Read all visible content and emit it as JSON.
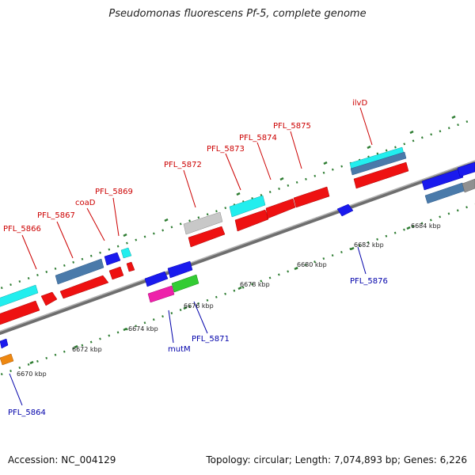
{
  "title": "Pseudomonas fluorescens Pf-5, complete genome",
  "footer": {
    "accession": "Accession: NC_004129",
    "summary": "Topology: circular; Length: 7,074,893 bp; Genes: 6,226"
  },
  "colors": {
    "forward_label": "#cc0000",
    "reverse_label": "#0000aa",
    "backbone": "#808080",
    "tick": "#2e7d32",
    "red": "#ee1111",
    "blue": "#1a1aee",
    "cyan": "#22eeee",
    "steelblue": "#4a7aaa",
    "gray": "#c8c8c8",
    "green": "#33cc33",
    "magenta": "#ee22aa",
    "orange": "#ee8811"
  },
  "axis": {
    "ticks": [
      "6670 kbp",
      "6672 kbp",
      "6674 kbp",
      "6676 kbp",
      "6678 kbp",
      "6680 kbp",
      "6682 kbp",
      "6684 kbp"
    ]
  },
  "labels": {
    "forward": [
      "PFL_5866",
      "PFL_5867",
      "coaD",
      "PFL_5869",
      "PFL_5872",
      "PFL_5873",
      "PFL_5874",
      "PFL_5875",
      "ilvD"
    ],
    "reverse": [
      "PFL_5864",
      "mutM",
      "PFL_5871",
      "PFL_5876"
    ]
  }
}
